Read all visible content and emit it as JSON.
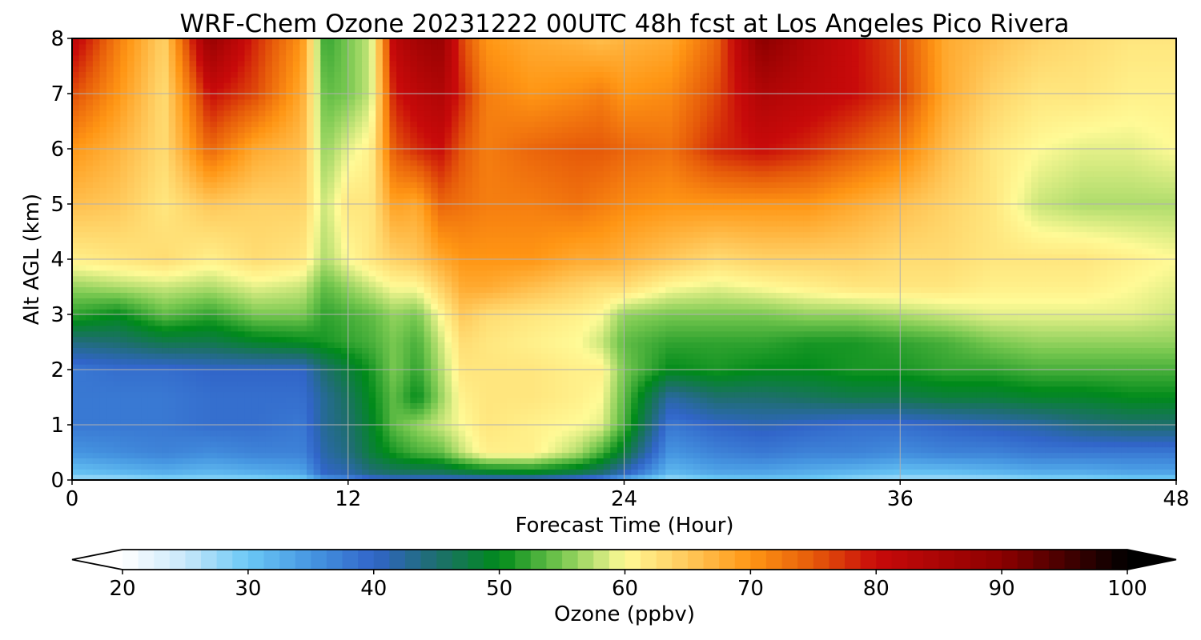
{
  "chart_data": {
    "type": "heatmap",
    "title": "WRF-Chem Ozone  20231222 00UTC 48h fcst at Los Angeles Pico Rivera",
    "xlabel": "Forecast Time (Hour)",
    "ylabel": "Alt AGL (km)",
    "xlim": [
      0,
      48
    ],
    "ylim": [
      0,
      8
    ],
    "xticks": [
      0,
      12,
      24,
      36,
      48
    ],
    "yticks": [
      0,
      1,
      2,
      3,
      4,
      5,
      6,
      7,
      8
    ],
    "grid": true,
    "colorbar": {
      "label": "Ozone  (ppbv)",
      "range": [
        20,
        100
      ],
      "ticks": [
        20,
        30,
        40,
        50,
        60,
        70,
        80,
        90,
        100
      ],
      "extend": "both"
    },
    "x": [
      0,
      2,
      4,
      6,
      8,
      10,
      11,
      12,
      13,
      14,
      15,
      16,
      17,
      18,
      20,
      22,
      23,
      24,
      26,
      28,
      30,
      32,
      34,
      36,
      38,
      40,
      42,
      44,
      46,
      48
    ],
    "y": [
      0,
      0.1,
      0.5,
      1,
      1.5,
      2,
      2.5,
      3,
      3.5,
      4,
      5,
      6,
      7,
      8
    ],
    "z": [
      [
        26,
        26,
        27,
        27,
        27,
        28,
        33,
        34,
        37,
        38,
        38,
        38,
        38,
        38,
        38,
        36,
        34,
        30,
        26,
        28,
        29,
        29,
        27,
        26,
        26,
        26,
        27,
        27,
        28,
        28
      ],
      [
        30,
        31,
        32,
        31,
        32,
        33,
        40,
        41,
        44,
        45,
        45,
        45,
        46,
        47,
        48,
        46,
        44,
        40,
        31,
        33,
        33,
        32,
        31,
        30,
        30,
        31,
        32,
        32,
        33,
        33
      ],
      [
        35,
        36,
        37,
        36,
        37,
        37,
        42,
        44,
        48,
        51,
        53,
        54,
        58,
        61,
        61,
        57,
        53,
        48,
        35,
        37,
        38,
        37,
        37,
        36,
        37,
        37,
        38,
        38,
        38,
        38
      ],
      [
        38,
        38,
        38,
        39,
        39,
        38,
        43,
        45,
        49,
        54,
        56,
        58,
        60,
        62,
        61,
        60,
        59,
        53,
        38,
        40,
        41,
        40,
        39,
        39,
        40,
        41,
        42,
        44,
        45,
        45
      ],
      [
        38,
        38,
        38,
        39,
        39,
        39,
        43,
        46,
        50,
        54,
        50,
        56,
        61,
        62,
        62,
        61,
        60,
        54,
        42,
        45,
        45,
        46,
        47,
        47,
        48,
        48,
        49,
        49,
        50,
        50
      ],
      [
        38,
        39,
        39,
        40,
        40,
        40,
        45,
        48,
        51,
        55,
        52,
        57,
        62,
        62,
        62,
        61,
        61,
        55,
        50,
        51,
        50,
        50,
        51,
        51,
        52,
        52,
        53,
        53,
        53,
        53
      ],
      [
        44,
        45,
        47,
        47,
        49,
        50,
        51,
        52,
        53,
        55,
        53,
        58,
        63,
        62,
        61,
        60,
        58,
        54,
        52,
        52,
        52,
        51,
        51,
        52,
        53,
        55,
        56,
        56,
        56,
        56
      ],
      [
        52,
        50,
        54,
        52,
        55,
        55,
        52,
        53,
        54,
        56,
        55,
        60,
        65,
        63,
        62,
        61,
        60,
        56,
        55,
        55,
        55,
        56,
        56,
        57,
        58,
        59,
        59,
        59,
        59,
        58
      ],
      [
        56,
        57,
        58,
        57,
        59,
        58,
        54,
        56,
        58,
        60,
        60,
        64,
        68,
        68,
        66,
        64,
        63,
        63,
        60,
        59,
        60,
        61,
        62,
        62,
        62,
        61,
        61,
        61,
        60,
        59
      ],
      [
        61,
        62,
        63,
        61,
        63,
        62,
        57,
        60,
        62,
        64,
        65,
        68,
        70,
        70,
        70,
        68,
        68,
        67,
        65,
        63,
        64,
        64,
        64,
        63,
        63,
        62,
        62,
        62,
        61,
        60
      ],
      [
        66,
        65,
        62,
        65,
        64,
        64,
        58,
        62,
        62,
        69,
        68,
        74,
        73,
        72,
        72,
        73,
        72,
        71,
        70,
        70,
        70,
        70,
        68,
        66,
        64,
        62,
        58,
        57,
        57,
        57
      ],
      [
        70,
        67,
        63,
        74,
        68,
        66,
        56,
        59,
        61,
        75,
        78,
        80,
        75,
        72,
        74,
        75,
        75,
        74,
        73,
        78,
        80,
        78,
        75,
        72,
        66,
        62,
        60,
        59,
        59,
        60
      ],
      [
        76,
        70,
        63,
        80,
        76,
        68,
        54,
        55,
        58,
        79,
        82,
        84,
        78,
        72,
        70,
        71,
        72,
        70,
        71,
        76,
        84,
        82,
        80,
        77,
        68,
        64,
        62,
        62,
        61,
        61
      ],
      [
        82,
        72,
        64,
        88,
        78,
        70,
        52,
        55,
        58,
        82,
        86,
        88,
        76,
        70,
        68,
        67,
        66,
        67,
        68,
        74,
        90,
        84,
        80,
        76,
        68,
        66,
        64,
        63,
        62,
        62
      ]
    ]
  }
}
